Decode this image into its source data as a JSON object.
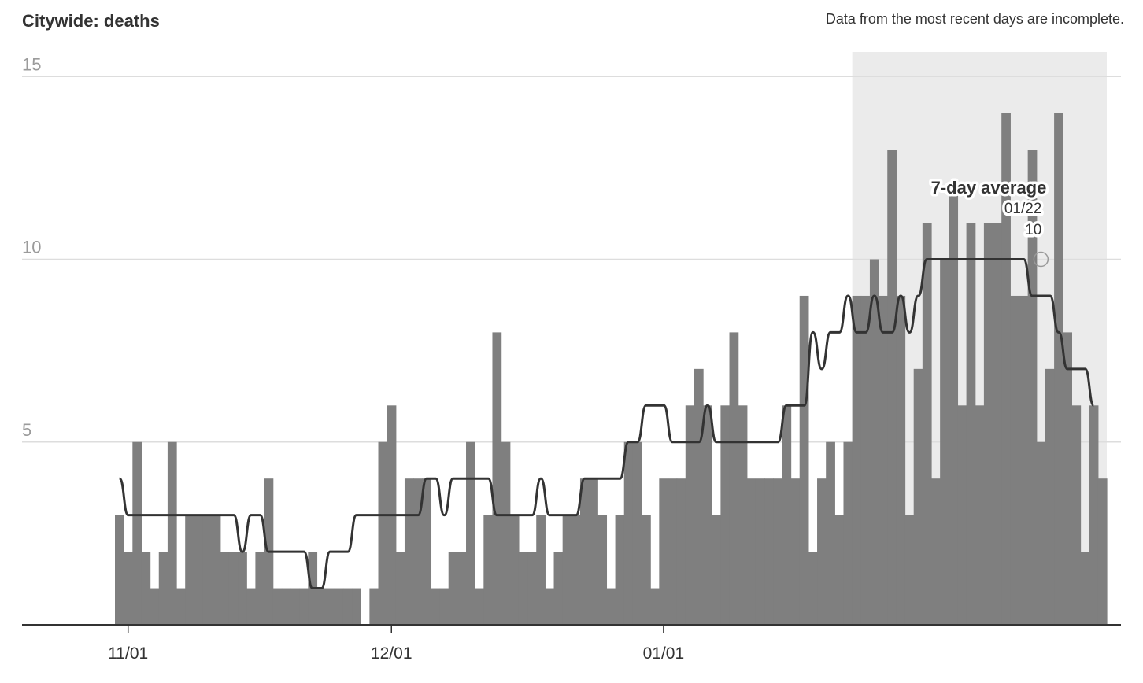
{
  "title": "Citywide: deaths",
  "note": "Data from the most recent days are incomplete.",
  "colors": {
    "bar": "#7f7f7f",
    "line": "#333333",
    "incomplete_shade": "#ebebeb",
    "grid": "#dddddd",
    "axis": "#333333"
  },
  "chart_data": {
    "type": "bar",
    "title": "Citywide: deaths",
    "xlabel": "",
    "ylabel": "",
    "ylim": [
      0,
      15
    ],
    "yticks": [
      5,
      10,
      15
    ],
    "grid": true,
    "xticks": [
      {
        "date": "2020-11-01",
        "label": "11/01"
      },
      {
        "date": "2020-12-01",
        "label": "12/01"
      },
      {
        "date": "2021-01-01",
        "label": "01/01"
      }
    ],
    "x_start": "2020-10-31",
    "x_end": "2021-01-29",
    "incomplete_from": "2021-01-23",
    "series": [
      {
        "name": "Deaths",
        "values": [
          3,
          2,
          5,
          2,
          1,
          2,
          5,
          1,
          3,
          3,
          3,
          3,
          2,
          2,
          2,
          1,
          2,
          4,
          1,
          1,
          1,
          1,
          2,
          1,
          1,
          1,
          1,
          1,
          0,
          1,
          5,
          6,
          2,
          4,
          4,
          4,
          1,
          1,
          2,
          2,
          5,
          1,
          3,
          8,
          5,
          3,
          2,
          2,
          3,
          1,
          2,
          3,
          3,
          4,
          4,
          3,
          1,
          3,
          5,
          5,
          3,
          1,
          4,
          4,
          4,
          6,
          7,
          6,
          3,
          6,
          8,
          6,
          4,
          4,
          4,
          4,
          6,
          4,
          9,
          2,
          4,
          5,
          3,
          5,
          9,
          9,
          10,
          9,
          13,
          9,
          3,
          7,
          11,
          4,
          10,
          12,
          6,
          11,
          6,
          11,
          11,
          14,
          9,
          9,
          13,
          5,
          7,
          14,
          8,
          6,
          2,
          6,
          4
        ]
      },
      {
        "name": "7-day average",
        "values": [
          4,
          3,
          3,
          3,
          3,
          3,
          3,
          3,
          3,
          3,
          3,
          3,
          3,
          3,
          2,
          3,
          3,
          2,
          2,
          2,
          2,
          2,
          1,
          1,
          2,
          2,
          2,
          3,
          3,
          3,
          3,
          3,
          3,
          3,
          3,
          4,
          4,
          3,
          4,
          4,
          4,
          4,
          4,
          3,
          3,
          3,
          3,
          3,
          4,
          3,
          3,
          3,
          3,
          4,
          4,
          4,
          4,
          4,
          5,
          5,
          6,
          6,
          6,
          5,
          5,
          5,
          5,
          6,
          5,
          5,
          5,
          5,
          5,
          5,
          5,
          5,
          6,
          6,
          6,
          8,
          7,
          8,
          8,
          9,
          8,
          8,
          9,
          8,
          8,
          9,
          8,
          9,
          10,
          10,
          10,
          10,
          10,
          10,
          10,
          10,
          10,
          10,
          10,
          10,
          9,
          9,
          9,
          8,
          7,
          7,
          7,
          6
        ]
      }
    ],
    "annotation": {
      "title": "7-day average",
      "date": "01/22",
      "value": "10"
    }
  }
}
